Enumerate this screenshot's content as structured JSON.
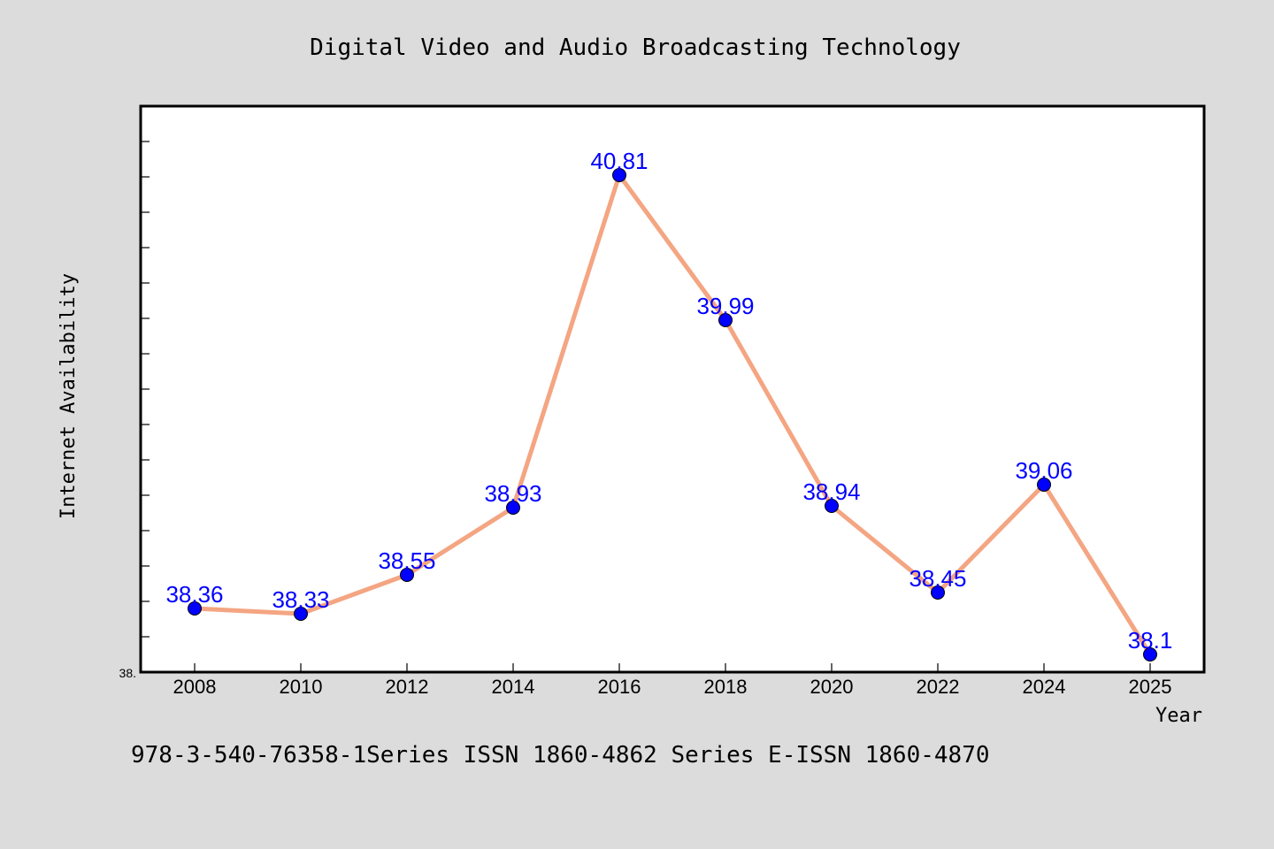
{
  "chart_data": {
    "type": "line",
    "title": "Digital Video and Audio Broadcasting Technology",
    "xlabel": "Year",
    "ylabel": "Internet Availability",
    "categories": [
      "2008",
      "2010",
      "2012",
      "2014",
      "2016",
      "2018",
      "2020",
      "2022",
      "2024",
      "2025"
    ],
    "series": [
      {
        "values": [
          38.36,
          38.33,
          38.55,
          38.93,
          40.81,
          39.99,
          38.94,
          38.45,
          39.06,
          38.1
        ]
      }
    ],
    "data_labels": [
      "38.36",
      "38.33",
      "38.55",
      "38.93",
      "40.81",
      "39.99",
      "38.94",
      "38.45",
      "39.06",
      "38.1"
    ],
    "ylim": [
      38.0,
      41.2
    ],
    "y_min_tick_label": "38.",
    "grid": false,
    "line_color": "#f4a582",
    "marker_color": "#0000ff",
    "label_color": "#0000ff",
    "background_color": "#dcdcdc",
    "plot_background": "#ffffff"
  },
  "footer": {
    "text": "978-3-540-76358-1Series ISSN 1860-4862 Series E-ISSN 1860-4870"
  }
}
